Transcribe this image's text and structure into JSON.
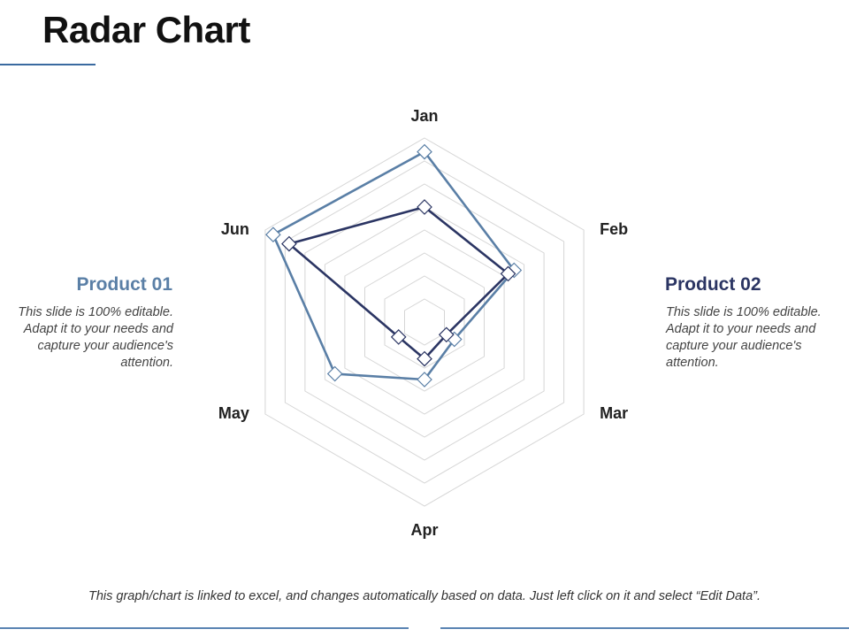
{
  "page": {
    "title": "Radar Chart",
    "footer_note": "This graph/chart is linked to excel, and changes automatically based on data. Just left click on it and select “Edit Data”."
  },
  "left_panel": {
    "title": "Product 01",
    "text": "This slide is 100% editable. Adapt it to your needs and capture your audience's attention."
  },
  "right_panel": {
    "title": "Product 02",
    "text": "This slide is 100% editable. Adapt it to your needs and capture your audience's attention."
  },
  "colors": {
    "product_01": "#5a7fa6",
    "product_02": "#2b3563",
    "grid": "#d6d6d6",
    "accent_line": "#3a6aa0"
  },
  "chart_data": {
    "type": "radar",
    "categories": [
      "Jan",
      "Feb",
      "Mar",
      "Apr",
      "May",
      "Jun"
    ],
    "rlim": [
      0,
      8
    ],
    "grid_levels": 8,
    "grid": true,
    "legend": "side panels",
    "series": [
      {
        "name": "Product 01",
        "values": [
          7.4,
          4.5,
          1.5,
          2.5,
          4.5,
          7.6
        ],
        "marker": "diamond"
      },
      {
        "name": "Product 02",
        "values": [
          5.0,
          4.2,
          1.1,
          1.6,
          1.3,
          6.8
        ],
        "marker": "diamond"
      }
    ]
  }
}
